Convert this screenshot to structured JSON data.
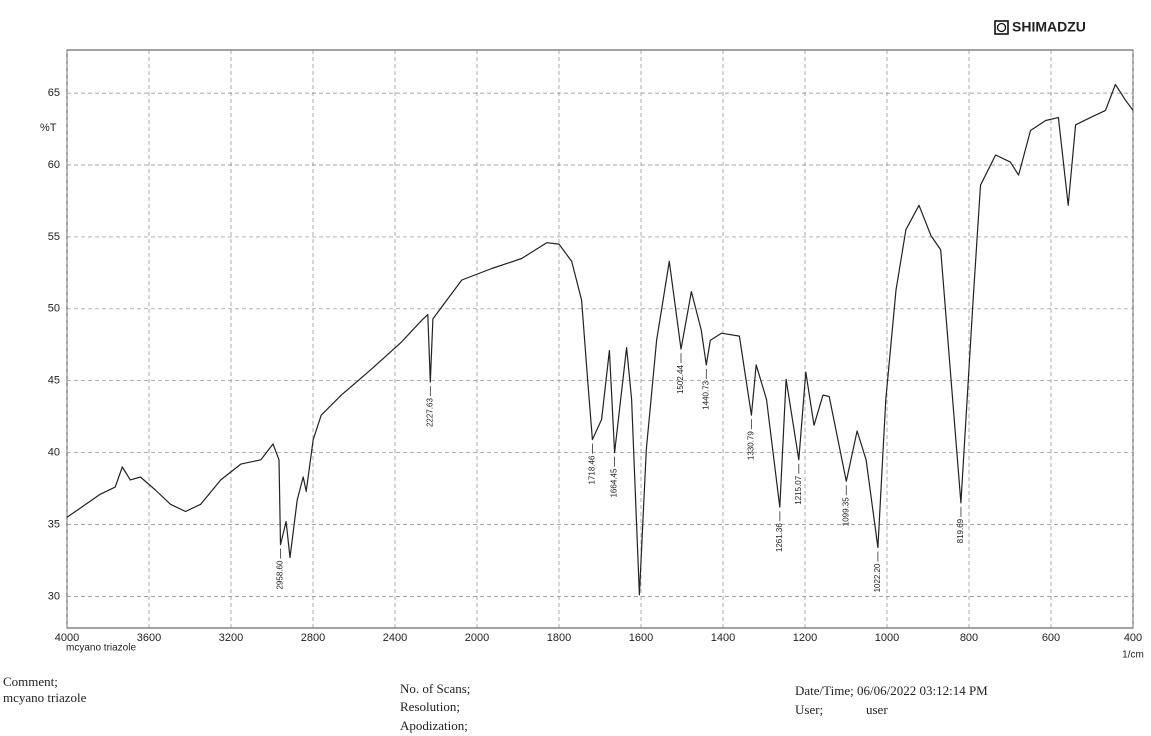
{
  "chart_data": {
    "type": "line",
    "brand": "SHIMADZU",
    "y_label": "%T",
    "x_label": "1/cm",
    "sample_name": "mcyano triazole",
    "x": [
      4000,
      3838,
      3765,
      3730,
      3691,
      3642,
      3569,
      3495,
      3422,
      3348,
      3250,
      3152,
      3054,
      2995,
      2966,
      2958.6,
      2931,
      2912,
      2877,
      2848,
      2833,
      2799,
      2760,
      2662,
      2515,
      2368,
      2270,
      2240,
      2227.63,
      2215,
      2074,
      1964,
      1891,
      1830,
      1800,
      1769,
      1745,
      1730,
      1718.46,
      1696,
      1677,
      1664.45,
      1635,
      1623,
      1604,
      1587,
      1562,
      1531,
      1502.44,
      1477,
      1453,
      1440.73,
      1431,
      1404,
      1360,
      1330.79,
      1319,
      1294,
      1261.36,
      1246,
      1215.07,
      1198,
      1178,
      1156,
      1141,
      1099.35,
      1073,
      1051,
      1022.2,
      1003,
      978,
      954,
      922,
      893,
      869,
      819.69,
      790,
      772,
      735,
      699,
      679,
      650,
      613,
      582,
      558,
      540,
      504,
      467,
      443,
      418,
      400
    ],
    "values": [
      35.5,
      37.1,
      37.6,
      39.0,
      38.1,
      38.3,
      37.4,
      36.4,
      35.9,
      36.4,
      38.1,
      39.2,
      39.5,
      40.6,
      39.5,
      33.6,
      35.2,
      32.7,
      36.7,
      38.3,
      37.3,
      40.9,
      42.6,
      44.0,
      45.8,
      47.7,
      49.2,
      49.6,
      44.9,
      49.3,
      52.0,
      52.8,
      53.5,
      54.6,
      54.5,
      53.3,
      50.6,
      45.0,
      40.9,
      42.3,
      47.1,
      40.0,
      47.3,
      43.7,
      30.1,
      40.2,
      47.8,
      53.3,
      47.2,
      51.2,
      48.5,
      46.1,
      47.8,
      48.3,
      48.1,
      42.6,
      46.1,
      43.7,
      36.2,
      45.1,
      39.5,
      45.6,
      41.9,
      44.0,
      43.9,
      38.0,
      41.5,
      39.5,
      33.4,
      43.7,
      51.3,
      55.5,
      57.2,
      55.1,
      54.1,
      36.5,
      50.6,
      58.6,
      60.7,
      60.2,
      59.3,
      62.4,
      63.1,
      63.3,
      57.2,
      62.8,
      63.3,
      63.8,
      65.6,
      64.5,
      63.8
    ],
    "color": "#222222",
    "xlim": [
      4000,
      400
    ],
    "xticks": [
      4000,
      3600,
      3200,
      2800,
      2400,
      2000,
      1800,
      1600,
      1400,
      1200,
      1000,
      800,
      600,
      400
    ],
    "ylim": [
      27.8,
      68
    ],
    "yticks": [
      30,
      35,
      40,
      45,
      50,
      55,
      60,
      65
    ],
    "grid": true,
    "peaks": {
      "x": [
        2958.6,
        2227.63,
        1718.46,
        1664.45,
        1502.44,
        1440.73,
        1330.79,
        1261.36,
        1215.07,
        1099.35,
        1022.2,
        819.69
      ],
      "labels": [
        "2958.60",
        "2227.63",
        "1718.46",
        "1664.45",
        "1502.44",
        "1440.73",
        "1330.79",
        "1261.36",
        "1215.07",
        "1099.35",
        "1022.20",
        "819.69"
      ],
      "y": [
        33.6,
        44.9,
        40.9,
        40.0,
        47.2,
        46.1,
        42.6,
        36.2,
        39.5,
        38.0,
        33.4,
        36.5
      ]
    }
  },
  "footer": {
    "comment_label": "Comment;",
    "comment": "mcyano triazole",
    "scans": "No. of Scans;",
    "resolution": "Resolution;",
    "apodization": "Apodization;",
    "datetime": "Date/Time; 06/06/2022 03:12:14 PM",
    "user_label": "User;",
    "user": "user"
  }
}
